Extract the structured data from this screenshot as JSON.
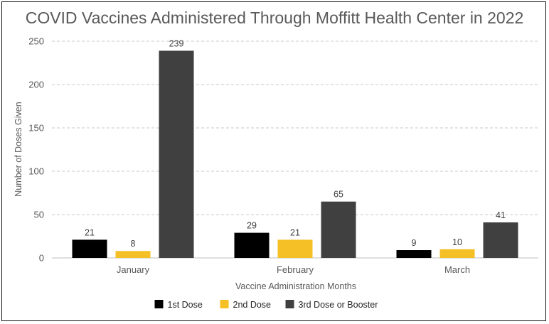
{
  "chart_data": {
    "type": "bar",
    "title": "COVID Vaccines Administered Through Moffitt Health Center in 2022",
    "xlabel": "Vaccine Administration Months",
    "ylabel": "Number of Doses Given",
    "categories": [
      "January",
      "February",
      "March"
    ],
    "series": [
      {
        "name": "1st Dose",
        "color": "#000000",
        "values": [
          21,
          29,
          9
        ]
      },
      {
        "name": "2nd Dose",
        "color": "#f5bf26",
        "values": [
          8,
          21,
          10
        ]
      },
      {
        "name": "3rd Dose or Booster",
        "color": "#404040",
        "values": [
          239,
          65,
          41
        ]
      }
    ],
    "ylim": [
      0,
      250
    ],
    "yticks": [
      "0",
      "50",
      "100",
      "150",
      "200",
      "250"
    ],
    "grid": true,
    "legend_position": "bottom-center",
    "data_labels": true
  }
}
